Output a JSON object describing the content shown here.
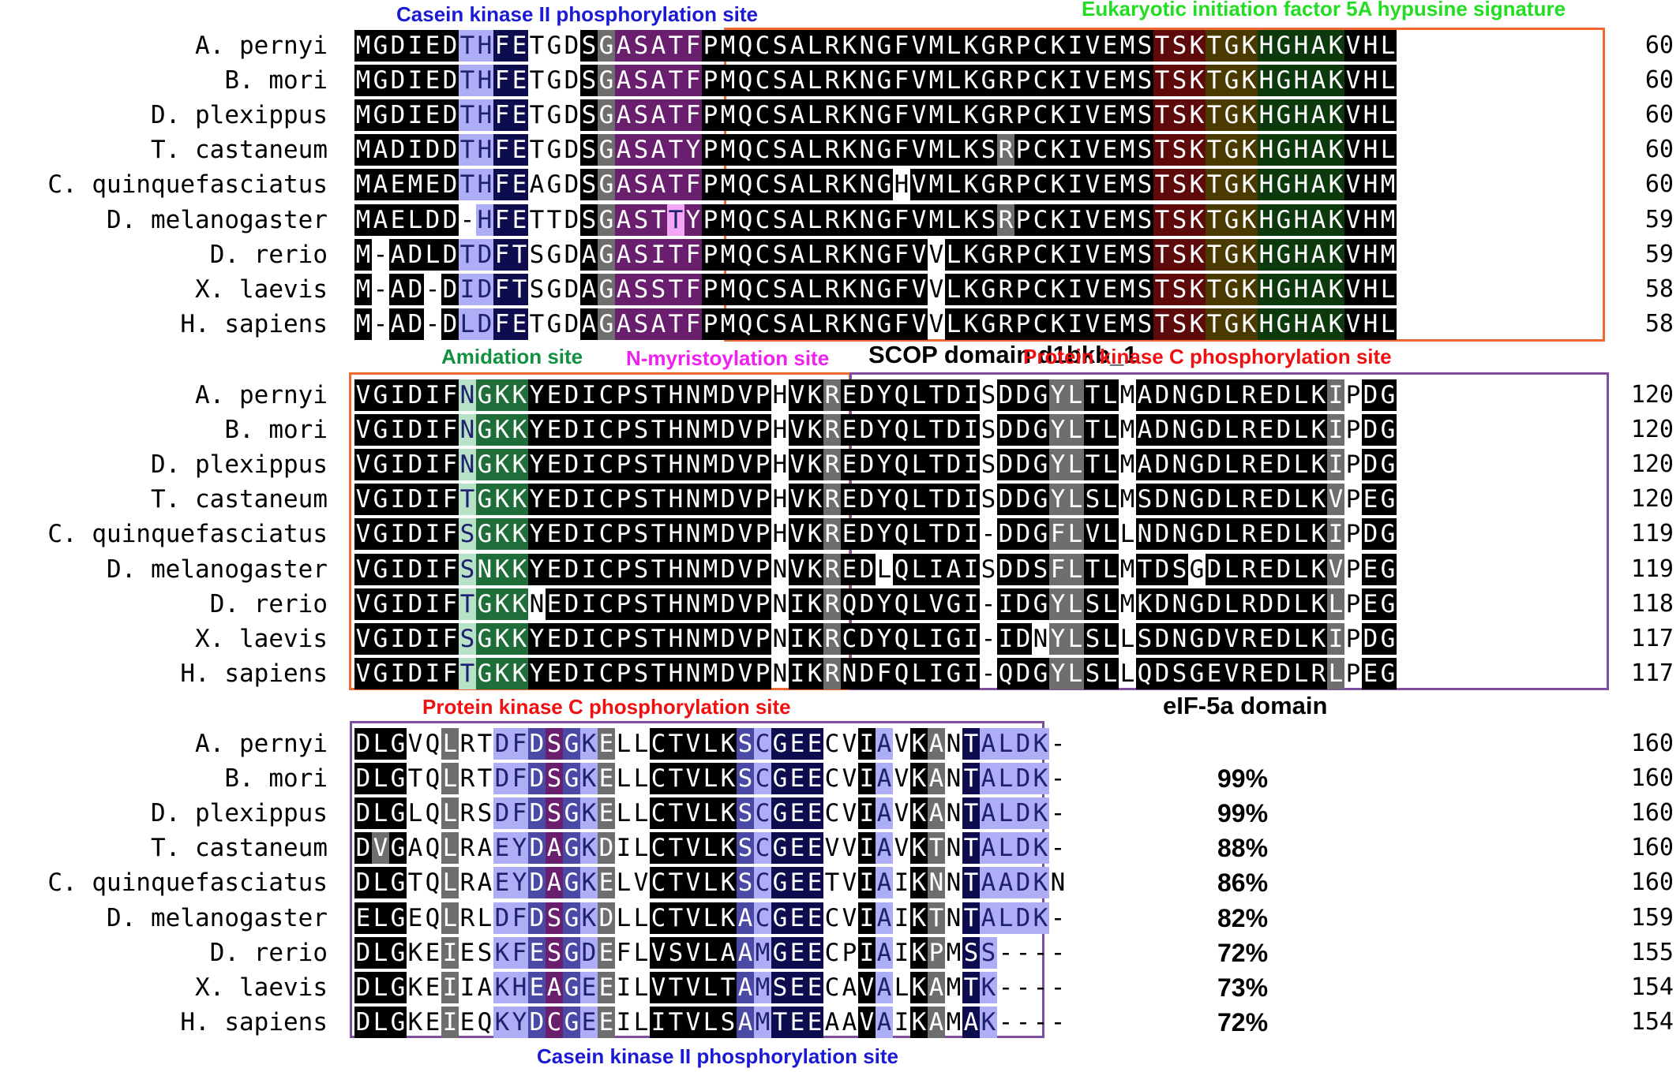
{
  "species": [
    "A. pernyi",
    "B. mori",
    "D. plexippus",
    "T. castaneum",
    "C. quinquefasciatus",
    "D. melanogaster",
    "D. rerio",
    "X. laevis",
    "H. sapiens"
  ],
  "blocks": [
    {
      "rows": [
        "MGDIEDTHFETGDSGASATFPMQCSALRKNGFVMLKGRPCKIVEMSTSKTGKHGHAKVHL",
        "MGDIEDTHFETGDSGASATFPMQCSALRKNGFVMLKGRPCKIVEMSTSKTGKHGHAKVHL",
        "MGDIEDTHFETGDSGASATFPMQCSALRKNGFVMLKGRPCKIVEMSTSKTGKHGHAKVHL",
        "MADIDDTHFETGDSGASATYPMQCSALRKNGFVMLKSRPCKIVEMSTSKTGKHGHAKVHL",
        "MAEMEDTHFEAGDSGASATFPMQCSALRKNGHVMLKGRPCKIVEMSTSKTGKHGHAKVHM",
        "MAELDD-HFETTDSGASTTYPMQCSALRKNGFVMLKSRPCKIVEMSTSKTGKHGHAKVHM",
        "M-ADLDTDFTSGDAGASITFPMQCSALRKNGFVVLKGRPCKIVEMSTSKTGKHGHAKVHM",
        "M-AD-DIDFTSGDAGASSTFPMQCSALRKNGFVVLKGRPCKIVEMSTSKTGKHGHAKVHL",
        "M-AD-DLDFETGDAGASATFPMQCSALRKNGFVVLKGRPCKIVEMSTSKTGKHGHAKVHL"
      ],
      "end_numbers": [
        "60",
        "60",
        "60",
        "60",
        "60",
        "59",
        "59",
        "58",
        "58"
      ]
    },
    {
      "rows": [
        "VGIDIFNGKKYEDICPSTHNMDVPHVKREDYQLTDISDDGYLTLMADNGDLREDLKIPDG",
        "VGIDIFNGKKYEDICPSTHNMDVPHVKREDYQLTDISDDGYLTLMADNGDLREDLKIPDG",
        "VGIDIFNGKKYEDICPSTHNMDVPHVKREDYQLTDISDDGYLTLMADNGDLREDLKIPDG",
        "VGIDIFTGKKYEDICPSTHNMDVPHVKREDYQLTDISDDGYLSLMSDNGDLREDLKVPEG",
        "VGIDIFSGKKYEDICPSTHNMDVPHVKREDYQLTDI-DDGFLVLLNDNGDLREDLKIPDG",
        "VGIDIFSNKKYEDICPSTHNMDVPNVKREDLQLIAISDDSFLTLMTDSGDLREDLKVPEG",
        "VGIDIFTGKKNEDICPSTHNMDVPNIKRQDYQLVGI-IDGYLSLMKDNGDLRDDLKLPEG",
        "VGIDIFSGKKYEDICPSTHNMDVPNIKRCDYQLIGI-IDNYLSLLSDNGDVREDLKIPDG",
        "VGIDIFTGKKYEDICPSTHNMDVPNIKRNDFQLIGI-QDGYLSLLQDSGEVREDLRLPEG"
      ],
      "end_numbers": [
        "120",
        "120",
        "120",
        "120",
        "119",
        "119",
        "118",
        "117",
        "117"
      ]
    },
    {
      "rows": [
        "DLGVQLRTDFDSGKELLCTVLKSCGEECVIAVKANTALDK-",
        "DLGTQLRTDFDSGKELLCTVLKSCGEECVIAVKANTALDK-",
        "DLGLQLRSDFDSGKELLCTVLKSCGEECVIAVKANTALDK-",
        "DVGAQLRAEYDAGKDILCTVLKSCGEEVVIAVKTNTALDK-",
        "DLGTQLRAEYDAGKELVCTVLKSCGEETVIAIKNNTAADKN",
        "ELGEQLRLDFDSGKDLLCTVLKACGEECVIAIKTNTALDK-",
        "DLGKEIESKFESGDEFLVSVLAAMGEECPIAIKPMSS----",
        "DLGKEIIAKHEAGEEILVTVLTAMSEECAVALKAMTK----",
        "DLGKEIEQKYDCGEEILITVLSAMTEEAAVAIKAMAK----"
      ],
      "end_numbers": [
        "160",
        "160",
        "160",
        "160",
        "160",
        "159",
        "155",
        "154",
        "154"
      ],
      "identity": [
        "",
        "99%",
        "99%",
        "88%",
        "86%",
        "82%",
        "72%",
        "73%",
        "72%"
      ]
    }
  ],
  "annotations": {
    "ck2_top": "Casein kinase II phosphorylation site",
    "eif5a_signature": "Eukaryotic initiation factor 5A hypusine signature",
    "amidation": "Amidation site",
    "myristoylation": "N-myristoylation site",
    "scop": "SCOP domain d1bkb_1",
    "pkc_mid": "Protein kinase C phosphorylation site",
    "pkc_bottom": "Protein kinase C phosphorylation site",
    "eif5a_domain": "eIF-5a domain",
    "ck2_bottom": "Casein kinase II phosphorylation site"
  },
  "colors": {
    "identical": "#000000",
    "similar": "#6e6e6e",
    "ck2_light": "#aeaef6",
    "ck2_mid": "#4a4aa6",
    "ck2_dark": "#0c0c4e",
    "myristoyl": "#6a1f6e",
    "myristoyl_light": "#f3a6f3",
    "pkc": "#5e0a0a",
    "olive": "#4a3a00",
    "green": "#0c3a0c",
    "amidation_light": "#b8e2c8",
    "amidation_dark": "#1f6e3a",
    "box_orange": "#f06a30",
    "box_purple": "#7e4fa0",
    "label_blue": "#1a1ad4",
    "label_green": "#22dd22",
    "label_darkgreen": "#109040",
    "label_magenta": "#f020f0",
    "label_red": "#f01010"
  }
}
